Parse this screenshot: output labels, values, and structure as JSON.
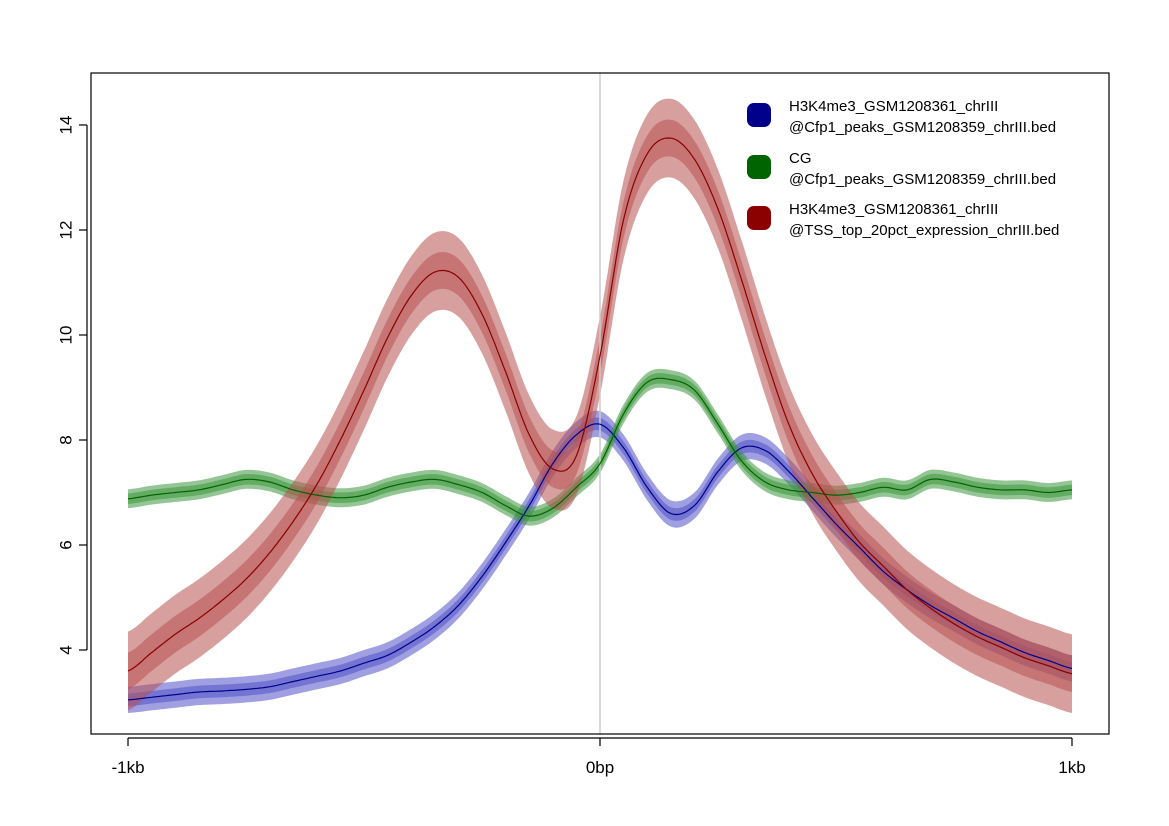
{
  "chart_data": {
    "type": "line",
    "title": "",
    "xlabel": "",
    "ylabel": "",
    "x_ticks": [
      "-1kb",
      "0bp",
      "1kb"
    ],
    "y_ticks": [
      "4",
      "6",
      "8",
      "10",
      "12",
      "14"
    ],
    "xlim": [
      -1000,
      1000
    ],
    "ylim": [
      2.4,
      15.0
    ],
    "vline_at": 0,
    "grid": false,
    "legend_position": "top-right",
    "x": [
      -1000,
      -950,
      -900,
      -850,
      -800,
      -750,
      -700,
      -650,
      -600,
      -550,
      -500,
      -450,
      -400,
      -350,
      -300,
      -250,
      -200,
      -150,
      -100,
      -50,
      0,
      50,
      100,
      150,
      200,
      250,
      300,
      350,
      400,
      450,
      500,
      550,
      600,
      650,
      700,
      750,
      800,
      850,
      900,
      950,
      1000
    ],
    "series": [
      {
        "name": "H3K4me3_GSM1208361_chrIII\n@Cfp1_peaks_GSM1208359_chrIII.bed",
        "color": "#00008b",
        "band_color": "#5050c8",
        "values": [
          3.05,
          3.1,
          3.15,
          3.2,
          3.22,
          3.25,
          3.3,
          3.4,
          3.5,
          3.6,
          3.75,
          3.9,
          4.15,
          4.45,
          4.85,
          5.4,
          6.05,
          6.75,
          7.55,
          8.1,
          8.3,
          7.85,
          7.1,
          6.6,
          6.75,
          7.4,
          7.85,
          7.8,
          7.4,
          6.9,
          6.4,
          5.95,
          5.5,
          5.15,
          4.85,
          4.6,
          4.35,
          4.15,
          3.95,
          3.8,
          3.65
        ],
        "inner_band": 0.12,
        "outer_band": 0.25
      },
      {
        "name": "CG\n@Cfp1_peaks_GSM1208359_chrIII.bed",
        "color": "#006400",
        "band_color": "#3c963c",
        "values": [
          6.88,
          6.95,
          7.0,
          7.05,
          7.15,
          7.25,
          7.2,
          7.05,
          6.95,
          6.9,
          6.95,
          7.1,
          7.2,
          7.25,
          7.15,
          7.0,
          6.75,
          6.55,
          6.7,
          7.1,
          7.55,
          8.5,
          9.1,
          9.15,
          8.95,
          8.3,
          7.6,
          7.2,
          7.05,
          7.0,
          6.95,
          7.0,
          7.1,
          7.05,
          7.25,
          7.2,
          7.1,
          7.05,
          7.05,
          7.0,
          7.05
        ],
        "inner_band": 0.1,
        "outer_band": 0.18
      },
      {
        "name": "H3K4me3_GSM1208361_chrIII\n@TSS_top_20pct_expression_chrIII.bed",
        "color": "#8b0000",
        "band_color": "#b85050",
        "values": [
          3.6,
          3.95,
          4.3,
          4.6,
          4.95,
          5.35,
          5.85,
          6.45,
          7.15,
          8.0,
          8.95,
          9.95,
          10.75,
          11.2,
          11.1,
          10.4,
          9.3,
          8.1,
          7.45,
          7.7,
          9.6,
          12.2,
          13.45,
          13.75,
          13.35,
          12.4,
          11.05,
          9.6,
          8.3,
          7.35,
          6.65,
          6.05,
          5.6,
          5.15,
          4.8,
          4.5,
          4.25,
          4.05,
          3.85,
          3.7,
          3.55
        ],
        "inner_band": 0.35,
        "outer_band": 0.75
      }
    ]
  }
}
